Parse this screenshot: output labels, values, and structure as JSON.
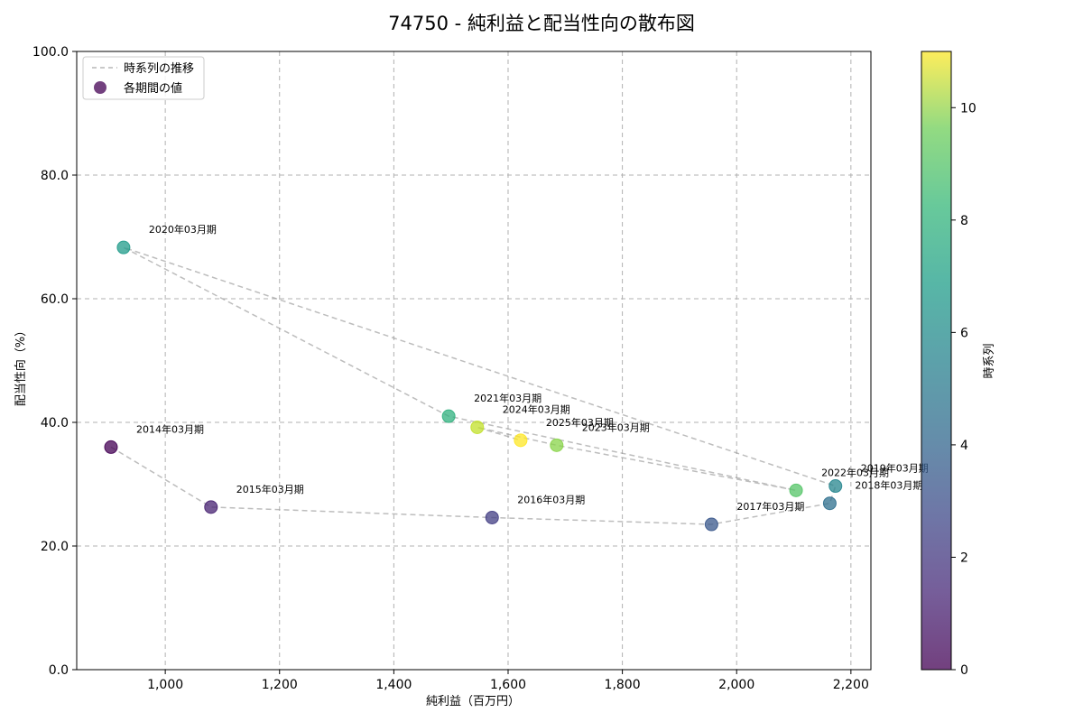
{
  "chart_data": {
    "type": "scatter",
    "title": "74750 - 純利益と配当性向の散布図",
    "xlabel": "純利益（百万円）",
    "ylabel": "配当性向（%）",
    "xlim": [
      845,
      2235
    ],
    "ylim": [
      0,
      100
    ],
    "x_ticks": [
      1000,
      1200,
      1400,
      1600,
      1800,
      2000,
      2200
    ],
    "x_tick_labels": [
      "1,000",
      "1,200",
      "1,400",
      "1,600",
      "1,800",
      "2,000",
      "2,200"
    ],
    "y_ticks": [
      0,
      20,
      40,
      60,
      80,
      100
    ],
    "y_tick_labels": [
      "0.0",
      "20.0",
      "40.0",
      "60.0",
      "80.0",
      "100.0"
    ],
    "grid": true,
    "legend_position": "top-left",
    "legend": {
      "line_label": "時系列の推移",
      "marker_label": "各期間の値"
    },
    "colorbar": {
      "label": "時系列",
      "range": [
        0,
        11
      ],
      "ticks": [
        0,
        2,
        4,
        6,
        8,
        10
      ],
      "tick_labels": [
        "0",
        "2",
        "4",
        "6",
        "8",
        "10"
      ],
      "colormap": "viridis"
    },
    "points": [
      {
        "label": "2014年03月期",
        "x": 905,
        "y": 36.0,
        "t": 0
      },
      {
        "label": "2015年03月期",
        "x": 1080,
        "y": 26.3,
        "t": 1
      },
      {
        "label": "2016年03月期",
        "x": 1572,
        "y": 24.6,
        "t": 2
      },
      {
        "label": "2017年03月期",
        "x": 1956,
        "y": 23.5,
        "t": 3
      },
      {
        "label": "2018年03月期",
        "x": 2163,
        "y": 26.9,
        "t": 4
      },
      {
        "label": "2019年03月期",
        "x": 2173,
        "y": 29.7,
        "t": 5
      },
      {
        "label": "2020年03月期",
        "x": 927,
        "y": 68.3,
        "t": 6
      },
      {
        "label": "2021年03月期",
        "x": 1496,
        "y": 41.0,
        "t": 7
      },
      {
        "label": "2022年03月期",
        "x": 2104,
        "y": 29.0,
        "t": 8
      },
      {
        "label": "2023年03月期",
        "x": 1685,
        "y": 36.3,
        "t": 9
      },
      {
        "label": "2024年03月期",
        "x": 1546,
        "y": 39.2,
        "t": 10
      },
      {
        "label": "2025年03月期",
        "x": 1622,
        "y": 37.1,
        "t": 11
      }
    ]
  }
}
